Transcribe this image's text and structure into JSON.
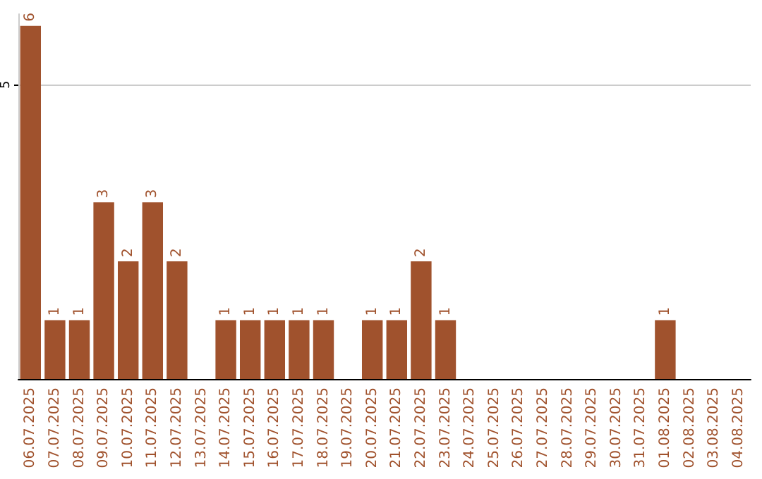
{
  "chart_data": {
    "type": "bar",
    "categories": [
      "06.07.2025",
      "07.07.2025",
      "08.07.2025",
      "09.07.2025",
      "10.07.2025",
      "11.07.2025",
      "12.07.2025",
      "13.07.2025",
      "14.07.2025",
      "15.07.2025",
      "16.07.2025",
      "17.07.2025",
      "18.07.2025",
      "19.07.2025",
      "20.07.2025",
      "21.07.2025",
      "22.07.2025",
      "23.07.2025",
      "24.07.2025",
      "25.07.2025",
      "26.07.2025",
      "27.07.2025",
      "28.07.2025",
      "29.07.2025",
      "30.07.2025",
      "31.07.2025",
      "01.08.2025",
      "02.08.2025",
      "03.08.2025",
      "04.08.2025"
    ],
    "values": [
      6,
      1,
      1,
      3,
      2,
      3,
      2,
      0,
      1,
      1,
      1,
      1,
      1,
      0,
      1,
      1,
      2,
      1,
      0,
      0,
      0,
      0,
      0,
      0,
      0,
      0,
      1,
      0,
      0,
      0
    ],
    "value_labels": [
      "6",
      "1",
      "1",
      "3",
      "2",
      "3",
      "2",
      null,
      "1",
      "1",
      "1",
      "1",
      "1",
      null,
      "1",
      "1",
      "2",
      "1",
      null,
      null,
      null,
      null,
      null,
      null,
      null,
      null,
      "1",
      null,
      null,
      null
    ],
    "color": "#a0522d",
    "ylim": [
      0,
      6.2
    ],
    "yticks": [
      5
    ],
    "grid": "y"
  }
}
